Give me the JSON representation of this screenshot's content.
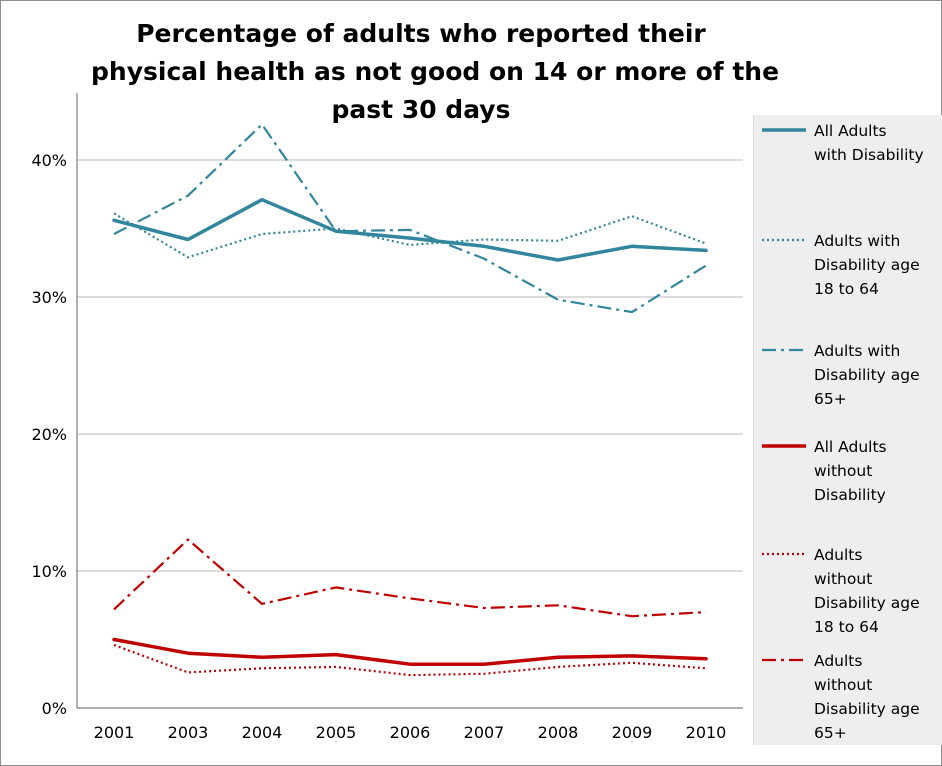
{
  "chart_data": {
    "type": "line",
    "title_lines": [
      "Percentage of adults who reported their",
      "physical health as not good on 14 or more of the",
      "past 30 days"
    ],
    "categories": [
      "2001",
      "2003",
      "2004",
      "2005",
      "2006",
      "2007",
      "2008",
      "2009",
      "2010"
    ],
    "y_ticks": [
      "0%",
      "10%",
      "20%",
      "30%",
      "40%"
    ],
    "ylim": [
      0,
      45
    ],
    "grid": true,
    "legend_position": "right",
    "series": [
      {
        "name": "All Adults with Disability",
        "legend_lines": [
          "All Adults",
          "with Disability"
        ],
        "style": "solid",
        "color": "#31859c",
        "width": 3.5,
        "values": [
          35.6,
          34.2,
          37.1,
          34.8,
          34.3,
          33.7,
          32.7,
          33.7,
          33.4
        ]
      },
      {
        "name": "Adults with Disability age 18 to 64",
        "legend_lines": [
          "Adults with",
          "Disability age",
          "18 to 64"
        ],
        "style": "dotted",
        "color": "#31859c",
        "width": 2.2,
        "values": [
          36.1,
          32.9,
          34.6,
          35.0,
          33.8,
          34.2,
          34.1,
          35.9,
          33.9
        ]
      },
      {
        "name": "Adults with Disability age 65+",
        "legend_lines": [
          "Adults with",
          "Disability age",
          "65+"
        ],
        "style": "dashdot",
        "color": "#31859c",
        "width": 2.2,
        "values": [
          34.6,
          37.4,
          42.6,
          34.8,
          34.9,
          32.8,
          29.8,
          28.9,
          32.3
        ]
      },
      {
        "name": "All Adults without Disability",
        "legend_lines": [
          "All Adults",
          "without",
          "Disability"
        ],
        "style": "solid",
        "color": "#c00000",
        "width": 3.5,
        "values": [
          5.0,
          4.0,
          3.7,
          3.9,
          3.2,
          3.2,
          3.7,
          3.8,
          3.6
        ]
      },
      {
        "name": "Adults without Disability age 18 to 64",
        "legend_lines": [
          "Adults",
          "without",
          "Disability age",
          "18 to 64"
        ],
        "style": "dotted",
        "color": "#c00000",
        "width": 2.2,
        "values": [
          4.6,
          2.6,
          2.9,
          3.0,
          2.4,
          2.5,
          3.0,
          3.3,
          2.9
        ]
      },
      {
        "name": "Adults without Disability age 65+",
        "legend_lines": [
          "Adults",
          "without",
          "Disability age",
          "65+"
        ],
        "style": "dashdot",
        "color": "#c00000",
        "width": 2.2,
        "values": [
          7.2,
          12.3,
          7.6,
          8.8,
          8.0,
          7.3,
          7.5,
          6.7,
          7.0
        ]
      }
    ]
  }
}
